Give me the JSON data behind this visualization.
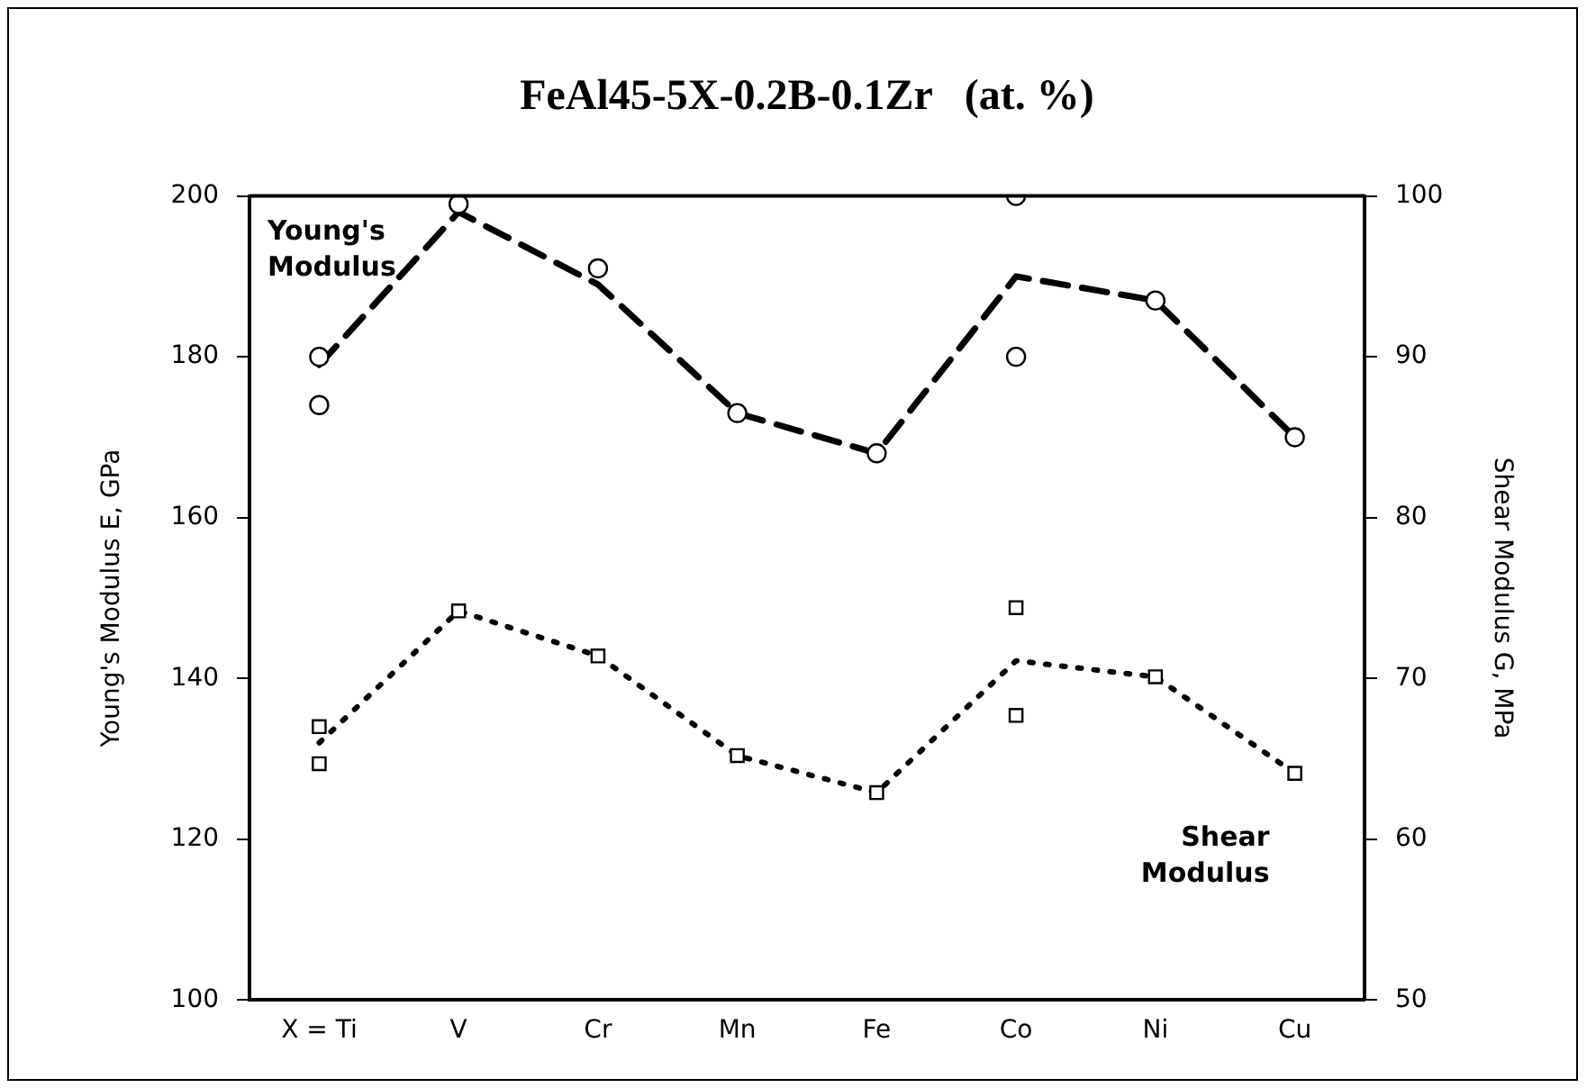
{
  "chart_data": {
    "type": "line",
    "title": "FeAl45-5X-0.2B-0.1Zr   (at. %)",
    "ylabel": "Young's Modulus E, GPa",
    "y2label": "Shear Modulus G, MPa",
    "categories": [
      "X = Ti",
      "V",
      "Cr",
      "Mn",
      "Fe",
      "Co",
      "Ni",
      "Cu"
    ],
    "ylim": [
      100,
      200
    ],
    "yticks": [
      100,
      120,
      140,
      160,
      180,
      200
    ],
    "y2lim": [
      50,
      100
    ],
    "y2ticks": [
      50,
      60,
      70,
      80,
      90,
      100
    ],
    "grid": false,
    "legend": false,
    "series": [
      {
        "name": "Young's Modulus",
        "color": "#000000",
        "line_style": "dashed",
        "marker": "none",
        "values": [
          179,
          198,
          189,
          173,
          168,
          190,
          187,
          170
        ]
      },
      {
        "type": "scatter",
        "color": "#000000",
        "marker": "circle",
        "x": [
          "X = Ti",
          "X = Ti",
          "V",
          "Cr",
          "Mn",
          "Fe",
          "Co",
          "Co",
          "Ni",
          "Cu"
        ],
        "values": [
          180,
          174,
          199,
          191,
          173,
          168,
          200,
          180,
          187,
          170
        ]
      },
      {
        "name": "Shear Modulus",
        "axis": "y2",
        "color": "#000000",
        "line_style": "dotted",
        "marker": "none",
        "values": [
          66,
          74.2,
          71.4,
          65.2,
          62.9,
          71.1,
          70.1,
          64.1
        ]
      },
      {
        "type": "scatter",
        "axis": "y2",
        "color": "#000000",
        "marker": "square",
        "x": [
          "X = Ti",
          "X = Ti",
          "V",
          "Cr",
          "Mn",
          "Fe",
          "Co",
          "Co",
          "Ni",
          "Cu"
        ],
        "values": [
          67,
          64.7,
          74.2,
          71.4,
          65.2,
          62.9,
          74.4,
          67.7,
          70.1,
          64.1
        ]
      }
    ]
  }
}
